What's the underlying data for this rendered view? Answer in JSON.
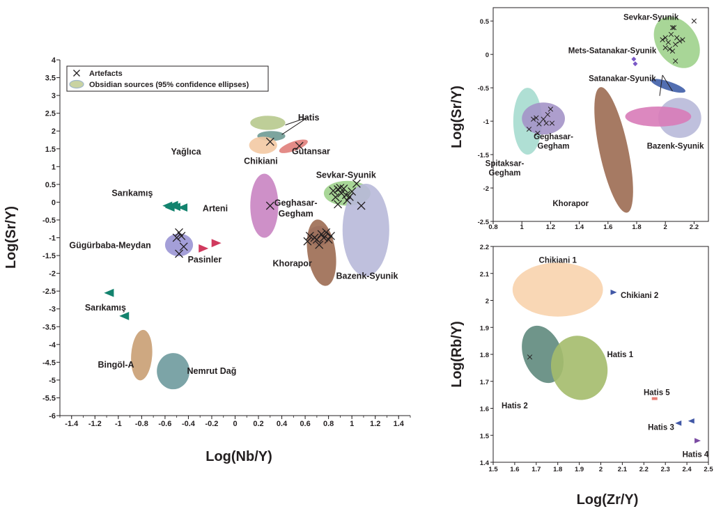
{
  "chart_data": [
    {
      "type": "scatter",
      "xlabel": "Log(Nb/Y)",
      "ylabel": "Log(Sr/Y)",
      "xlim": [
        -1.5,
        1.5
      ],
      "ylim": [
        -6,
        4
      ],
      "xticks": [
        "-1.4",
        "-1.2",
        "-1",
        "-0.8",
        "-0.6",
        "-0.4",
        "-0.2",
        "0",
        "0.2",
        "0.4",
        "0.6",
        "0.8",
        "1",
        "1.2",
        "1.4"
      ],
      "yticks": [
        "4",
        "3.5",
        "3",
        "2.5",
        "2",
        "1.5",
        "1",
        "0.5",
        "0",
        "-0.5",
        "-1",
        "-1.5",
        "-2",
        "-2.5",
        "-3",
        "-3.5",
        "-4",
        "-4.5",
        "-5",
        "-5.5",
        "-6"
      ],
      "legend": {
        "position": "top-left",
        "items": [
          {
            "label": "Artefacts",
            "marker": "x"
          },
          {
            "label": "Obsidian sources (95% confidence ellipses)",
            "marker": "ellipse"
          }
        ]
      },
      "ellipses": [
        {
          "name": "Hatis",
          "cx": 0.28,
          "cy": 2.23,
          "rx": 0.15,
          "ry": 0.2,
          "angle": 0,
          "color": "#b7c98d"
        },
        {
          "name": "Chikiani",
          "cx": 0.31,
          "cy": 1.86,
          "rx": 0.12,
          "ry": 0.14,
          "angle": 0,
          "color": "#6e9a93"
        },
        {
          "name": "Chikiani",
          "cx": 0.24,
          "cy": 1.6,
          "rx": 0.12,
          "ry": 0.24,
          "angle": 0,
          "color": "#f3c9a3"
        },
        {
          "name": "Gutansar",
          "cx": 0.5,
          "cy": 1.57,
          "rx": 0.13,
          "ry": 0.13,
          "angle": 20,
          "color": "#e07e7a"
        },
        {
          "name": "Arteni",
          "cx": 0.25,
          "cy": -0.1,
          "rx": 0.12,
          "ry": 0.9,
          "angle": 0,
          "color": "#c984c2"
        },
        {
          "name": "Sevkar-Syunik",
          "cx": 0.96,
          "cy": 0.25,
          "rx": 0.2,
          "ry": 0.35,
          "angle": 0,
          "color": "#9fd28c"
        },
        {
          "name": "Bazenk-Syunik",
          "cx": 1.12,
          "cy": -0.78,
          "rx": 0.2,
          "ry": 1.3,
          "angle": 0,
          "color": "#b8b9d9"
        },
        {
          "name": "Geghasar-Gegham",
          "cx": 0.72,
          "cy": -0.95,
          "rx": 0.1,
          "ry": 0.28,
          "angle": 0,
          "color": "#a493c8"
        },
        {
          "name": "Khorapor",
          "cx": 0.74,
          "cy": -1.42,
          "rx": 0.12,
          "ry": 0.94,
          "angle": 8,
          "color": "#9c6c52"
        },
        {
          "name": "Gügürbaba-Meydan",
          "cx": -0.48,
          "cy": -1.2,
          "rx": 0.12,
          "ry": 0.32,
          "angle": 0,
          "color": "#9a95d4"
        },
        {
          "name": "Bingöl-A",
          "cx": -0.8,
          "cy": -4.3,
          "rx": 0.09,
          "ry": 0.71,
          "angle": -4,
          "color": "#c99e73"
        },
        {
          "name": "Nemrut Dağ",
          "cx": -0.53,
          "cy": -4.75,
          "rx": 0.14,
          "ry": 0.51,
          "angle": 0,
          "color": "#6e9a9d"
        }
      ],
      "artefacts": [
        [
          0.3,
          1.7
        ],
        [
          0.55,
          1.58
        ],
        [
          0.3,
          -0.1
        ],
        [
          1.08,
          -0.1
        ],
        [
          1.04,
          0.52
        ],
        [
          0.84,
          0.32
        ],
        [
          0.86,
          0.14
        ],
        [
          0.88,
          0.36
        ],
        [
          0.9,
          0.4
        ],
        [
          0.91,
          0.25
        ],
        [
          0.93,
          0.38
        ],
        [
          0.95,
          0.2
        ],
        [
          0.98,
          0.15
        ],
        [
          1.0,
          0.3
        ],
        [
          0.88,
          -0.06
        ],
        [
          0.96,
          0.05
        ],
        [
          0.62,
          -1.1
        ],
        [
          0.64,
          -0.95
        ],
        [
          0.68,
          -1.0
        ],
        [
          0.7,
          -1.05
        ],
        [
          0.72,
          -1.2
        ],
        [
          0.74,
          -0.9
        ],
        [
          0.76,
          -1.0
        ],
        [
          0.78,
          -0.85
        ],
        [
          0.8,
          -1.05
        ],
        [
          0.82,
          -0.95
        ],
        [
          -0.48,
          -0.85
        ],
        [
          -0.46,
          -0.95
        ],
        [
          -0.5,
          -1.0
        ],
        [
          -0.44,
          -1.25
        ],
        [
          -0.48,
          -1.45
        ]
      ],
      "triangles": [
        {
          "name": "Sarıkamış",
          "color": "#13836e",
          "direction": "left",
          "points": [
            [
              -0.58,
              -0.1
            ],
            [
              -0.56,
              -0.15
            ],
            [
              -0.53,
              -0.08
            ],
            [
              -0.51,
              -0.13
            ],
            [
              -0.45,
              -0.15
            ]
          ]
        },
        {
          "name": "Sarıkamış",
          "color": "#13836e",
          "direction": "left",
          "points": [
            [
              -1.08,
              -2.55
            ],
            [
              -0.95,
              -3.2
            ]
          ]
        },
        {
          "name": "Pasinler",
          "color": "#d03a5e",
          "direction": "right",
          "points": [
            [
              -0.27,
              -1.3
            ],
            [
              -0.16,
              -1.15
            ]
          ]
        }
      ],
      "labels": [
        {
          "text": "Hatis",
          "x": 0.63,
          "y": 2.38
        },
        {
          "text": "Yağlıca",
          "x": -0.42,
          "y": 1.42
        },
        {
          "text": "Chikiani",
          "x": 0.22,
          "y": 1.15
        },
        {
          "text": "Gutansar",
          "x": 0.65,
          "y": 1.43
        },
        {
          "text": "Sarıkamış",
          "x": -0.88,
          "y": 0.25
        },
        {
          "text": "Arteni",
          "x": -0.17,
          "y": -0.18
        },
        {
          "text": "Sevkar-Syunik",
          "x": 0.95,
          "y": 0.76
        },
        {
          "text": "Geghasar-",
          "x": 0.52,
          "y": -0.02
        },
        {
          "text": "Gegham",
          "x": 0.52,
          "y": -0.32
        },
        {
          "text": "Gügürbaba-Meydan",
          "x": -1.07,
          "y": -1.22
        },
        {
          "text": "Pasinler",
          "x": -0.26,
          "y": -1.62
        },
        {
          "text": "Khorapor",
          "x": 0.49,
          "y": -1.72
        },
        {
          "text": "Bazenk-Syunik",
          "x": 1.13,
          "y": -2.08
        },
        {
          "text": "Sarıkamış",
          "x": -1.11,
          "y": -2.97
        },
        {
          "text": "Bingöl-A",
          "x": -1.02,
          "y": -4.57
        },
        {
          "text": "Nemrut Dağ",
          "x": -0.2,
          "y": -4.75
        }
      ],
      "leaders": [
        {
          "from": [
            0.62,
            2.38
          ],
          "to": [
            0.43,
            2.17
          ]
        },
        {
          "from": [
            0.62,
            2.38
          ],
          "to": [
            0.4,
            1.9
          ]
        }
      ]
    },
    {
      "type": "scatter",
      "xlabel": "",
      "ylabel": "Log(Sr/Y)",
      "xlim": [
        0.8,
        2.3
      ],
      "ylim": [
        -2.5,
        0.7
      ],
      "xticks": [
        "0.8",
        "1",
        "1.2",
        "1.4",
        "1.6",
        "1.8",
        "2",
        "2.2"
      ],
      "yticks": [
        "0.5",
        "0",
        "-0.5",
        "-1",
        "-1.5",
        "-2",
        "-2.5"
      ],
      "ellipses": [
        {
          "name": "Sevkar-Syunik",
          "cx": 2.08,
          "cy": 0.18,
          "rx": 0.14,
          "ry": 0.42,
          "angle": 35,
          "color": "#9fd28c"
        },
        {
          "name": "Satanakar-Syunik",
          "cx": 2.02,
          "cy": -0.47,
          "rx": 0.03,
          "ry": 0.27,
          "angle": 72,
          "color": "#3f5ea8"
        },
        {
          "name": "Bazenk-Syunik",
          "cx": 2.1,
          "cy": -0.95,
          "rx": 0.15,
          "ry": 0.3,
          "angle": 0,
          "color": "#b8b9d9"
        },
        {
          "name": "Satanakar-Syunik",
          "cx": 1.95,
          "cy": -0.93,
          "rx": 0.23,
          "ry": 0.15,
          "angle": 0,
          "color": "#d87bb8"
        },
        {
          "name": "Khorapor",
          "cx": 1.64,
          "cy": -1.43,
          "rx": 0.1,
          "ry": 0.96,
          "angle": 12,
          "color": "#9c6c52"
        },
        {
          "name": "Spitaksar-Gegham",
          "cx": 1.04,
          "cy": -1.0,
          "rx": 0.1,
          "ry": 0.5,
          "angle": 0,
          "color": "#a6dccf"
        },
        {
          "name": "Geghasar-Gegham",
          "cx": 1.15,
          "cy": -0.96,
          "rx": 0.15,
          "ry": 0.24,
          "angle": 0,
          "color": "#a493c8"
        }
      ],
      "artefacts": [
        [
          2.05,
          0.4
        ],
        [
          2.06,
          0.4
        ],
        [
          2.2,
          0.5
        ],
        [
          1.98,
          0.22
        ],
        [
          2.0,
          0.25
        ],
        [
          2.04,
          0.3
        ],
        [
          2.08,
          0.25
        ],
        [
          2.1,
          0.2
        ],
        [
          2.12,
          0.22
        ],
        [
          2.02,
          0.18
        ],
        [
          2.0,
          0.1
        ],
        [
          2.05,
          0.05
        ],
        [
          2.03,
          0.08
        ],
        [
          2.07,
          0.15
        ],
        [
          2.07,
          -0.1
        ],
        [
          1.05,
          -1.12
        ],
        [
          1.08,
          -0.97
        ],
        [
          1.1,
          -0.95
        ],
        [
          1.11,
          -1.18
        ],
        [
          1.12,
          -1.04
        ],
        [
          1.15,
          -0.97
        ],
        [
          1.17,
          -1.03
        ],
        [
          1.18,
          -0.9
        ],
        [
          1.2,
          -0.82
        ],
        [
          1.21,
          -1.03
        ]
      ],
      "diamonds": {
        "name": "Mets-Satanakar-Syunik",
        "color": "#7a58c6",
        "points": [
          [
            1.78,
            -0.07
          ],
          [
            1.79,
            -0.14
          ]
        ]
      },
      "labels": [
        {
          "text": "Sevkar-Syunik",
          "x": 1.9,
          "y": 0.56
        },
        {
          "text": "Mets-Satanakar-Syunik",
          "x": 1.63,
          "y": 0.06
        },
        {
          "text": "Satanakar-Syunik",
          "x": 1.7,
          "y": -0.36
        },
        {
          "text": "Geghasar-",
          "x": 1.22,
          "y": -1.23
        },
        {
          "text": "Gegham",
          "x": 1.22,
          "y": -1.37
        },
        {
          "text": "Bazenk-Syunik",
          "x": 2.07,
          "y": -1.37
        },
        {
          "text": "Spitaksar-",
          "x": 0.88,
          "y": -1.63
        },
        {
          "text": "Gegham",
          "x": 0.88,
          "y": -1.77
        },
        {
          "text": "Khorapor",
          "x": 1.34,
          "y": -2.23
        }
      ],
      "leaders": [
        {
          "from": [
            1.98,
            -0.31
          ],
          "to": [
            1.96,
            -0.62
          ]
        },
        {
          "from": [
            1.98,
            -0.31
          ],
          "to": [
            2.05,
            -0.55
          ]
        }
      ]
    },
    {
      "type": "scatter",
      "xlabel": "Log(Zr/Y)",
      "ylabel": "Log(Rb/Y)",
      "xlim": [
        1.5,
        2.5
      ],
      "ylim": [
        1.4,
        2.2
      ],
      "xticks": [
        "1.5",
        "1.6",
        "1.7",
        "1.8",
        "1.9",
        "2",
        "2.1",
        "2.2",
        "2.3",
        "2.4",
        "2.5"
      ],
      "yticks": [
        "2.2",
        "2.1",
        "2",
        "1.9",
        "1.8",
        "1.7",
        "1.6",
        "1.5",
        "1.4"
      ],
      "ellipses": [
        {
          "name": "Chikiani 1",
          "cx": 1.8,
          "cy": 2.04,
          "rx": 0.21,
          "ry": 0.1,
          "angle": 0,
          "color": "#f8d3ad"
        },
        {
          "name": "Hatis 2",
          "cx": 1.73,
          "cy": 1.8,
          "rx": 0.09,
          "ry": 0.11,
          "angle": 20,
          "color": "#5f8a7d"
        },
        {
          "name": "Hatis 1",
          "cx": 1.9,
          "cy": 1.75,
          "rx": 0.13,
          "ry": 0.12,
          "angle": 15,
          "color": "#a4bb6b"
        }
      ],
      "artefacts": [
        [
          1.67,
          1.79
        ]
      ],
      "triangles": [
        {
          "name": "Chikiani 2",
          "color": "#4158a6",
          "direction": "right",
          "points": [
            [
              2.06,
              2.03
            ]
          ]
        },
        {
          "name": "Hatis 3",
          "color": "#4158a6",
          "direction": "left",
          "points": [
            [
              2.36,
              1.545
            ],
            [
              2.42,
              1.553
            ]
          ]
        },
        {
          "name": "Hatis 4",
          "color": "#7b4ba3",
          "direction": "right",
          "points": [
            [
              2.45,
              1.48
            ]
          ]
        }
      ],
      "rects": [
        {
          "name": "Hatis 5",
          "color": "#e67d73",
          "x": 2.25,
          "y": 1.636
        }
      ],
      "labels": [
        {
          "text": "Chikiani 1",
          "x": 1.8,
          "y": 2.15
        },
        {
          "text": "Chikiani 2",
          "x": 2.18,
          "y": 2.02
        },
        {
          "text": "Hatis 1",
          "x": 2.09,
          "y": 1.8
        },
        {
          "text": "Hatis 2",
          "x": 1.6,
          "y": 1.61
        },
        {
          "text": "Hatis 5",
          "x": 2.26,
          "y": 1.66
        },
        {
          "text": "Hatis 3",
          "x": 2.28,
          "y": 1.53
        },
        {
          "text": "Hatis 4",
          "x": 2.44,
          "y": 1.43
        }
      ]
    }
  ]
}
